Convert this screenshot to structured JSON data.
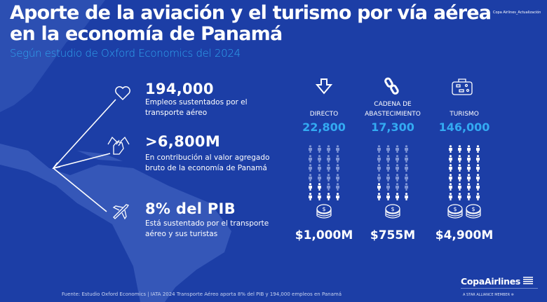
{
  "header": {
    "title": "Aporte de la aviación y el turismo por vía aérea en la economía de Panamá",
    "subtitle": "Según estudio de Oxford Economics del 2024",
    "tag": "Copa Airlines_Actualización"
  },
  "stats": [
    {
      "icon": "heart-icon",
      "value": "194,000",
      "description": "Empleos sustentados por el transporte aéreo"
    },
    {
      "icon": "hands-icon",
      "value": ">6,800M",
      "description": "En contribución al valor agregado bruto de la economía de Panamá"
    },
    {
      "icon": "airplane-icon",
      "value": "8% del PIB",
      "description": "Está sustentado por el transporte aéreo  y sus turistas"
    }
  ],
  "columns": [
    {
      "icon": "arrow-down-icon",
      "label": "DIRECTO",
      "value": "22,800",
      "people_highlighted": 6,
      "people_total": 24,
      "coin_stacks": 1,
      "amount": "$1,000M"
    },
    {
      "icon": "chain-link-icon",
      "label": "CADENA DE ABASTECIMIENTO",
      "value": "17,300",
      "people_highlighted": 5,
      "people_total": 24,
      "coin_stacks": 1,
      "amount": "$755M"
    },
    {
      "icon": "suitcase-icon",
      "label": "TURISMO",
      "value": "146,000",
      "people_highlighted": 24,
      "people_total": 24,
      "coin_stacks": 2,
      "amount": "$4,900M"
    }
  ],
  "footer": {
    "source": "Fuente:   Estudio Oxford Economics | IATA 2024 Transporte Aéreo aporta 8% del PIB y 194,000 empleos en Panamá",
    "logo": "CopaAirlines",
    "alliance": "A STAR ALLIANCE MEMBER"
  },
  "colors": {
    "background": "#1c3ea6",
    "accent": "#33aaf2",
    "map": "#3a5cb8"
  }
}
